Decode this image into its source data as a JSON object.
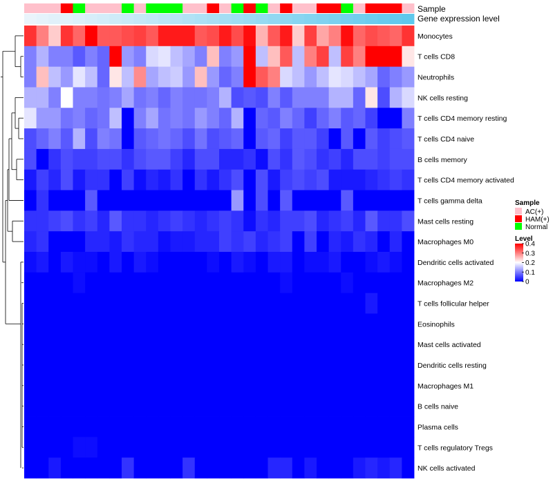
{
  "chart_data": {
    "type": "heatmap",
    "title": "",
    "n_samples": 32,
    "sample_annotation": {
      "label": "Sample",
      "values": [
        "AC(+)",
        "AC(+)",
        "AC(+)",
        "HAM(+)",
        "Normal",
        "AC(+)",
        "AC(+)",
        "AC(+)",
        "Normal",
        "AC(+)",
        "Normal",
        "Normal",
        "Normal",
        "AC(+)",
        "AC(+)",
        "HAM(+)",
        "AC(+)",
        "Normal",
        "HAM(+)",
        "Normal",
        "AC(+)",
        "HAM(+)",
        "AC(+)",
        "AC(+)",
        "HAM(+)",
        "HAM(+)",
        "Normal",
        "AC(+)",
        "HAM(+)",
        "HAM(+)",
        "HAM(+)",
        "AC(+)"
      ]
    },
    "gene_expression_annotation": {
      "label": "Gene expression level",
      "values": [
        0.05,
        0.06,
        0.07,
        0.07,
        0.08,
        0.09,
        0.1,
        0.11,
        0.12,
        0.13,
        0.14,
        0.15,
        0.16,
        0.17,
        0.18,
        0.19,
        0.2,
        0.21,
        0.22,
        0.23,
        0.24,
        0.25,
        0.26,
        0.27,
        0.28,
        0.29,
        0.3,
        0.31,
        0.32,
        0.33,
        0.34,
        0.35
      ],
      "low_color": "#eaf4fb",
      "high_color": "#5ec8ec"
    },
    "rows": [
      {
        "name": "Monocytes",
        "values": [
          0.36,
          0.3,
          0.24,
          0.36,
          0.32,
          0.4,
          0.33,
          0.33,
          0.34,
          0.35,
          0.33,
          0.38,
          0.38,
          0.38,
          0.33,
          0.34,
          0.38,
          0.34,
          0.39,
          0.26,
          0.33,
          0.38,
          0.24,
          0.35,
          0.27,
          0.3,
          0.39,
          0.32,
          0.34,
          0.33,
          0.32,
          0.36
        ]
      },
      {
        "name": "T cells CD8",
        "values": [
          0.1,
          0.14,
          0.1,
          0.1,
          0.07,
          0.1,
          0.08,
          0.4,
          0.12,
          0.1,
          0.17,
          0.18,
          0.15,
          0.13,
          0.1,
          0.25,
          0.1,
          0.12,
          0.4,
          0.15,
          0.25,
          0.33,
          0.15,
          0.3,
          0.35,
          0.15,
          0.35,
          0.3,
          0.4,
          0.4,
          0.4,
          0.22
        ]
      },
      {
        "name": "Neutrophils",
        "values": [
          0.1,
          0.25,
          0.15,
          0.12,
          0.18,
          0.15,
          0.08,
          0.22,
          0.15,
          0.29,
          0.13,
          0.15,
          0.16,
          0.12,
          0.25,
          0.12,
          0.08,
          0.1,
          0.4,
          0.33,
          0.3,
          0.17,
          0.15,
          0.12,
          0.15,
          0.18,
          0.17,
          0.15,
          0.13,
          0.08,
          0.1,
          0.12
        ]
      },
      {
        "name": "NK cells resting",
        "values": [
          0.14,
          0.14,
          0.1,
          0.2,
          0.1,
          0.1,
          0.09,
          0.1,
          0.13,
          0.09,
          0.1,
          0.08,
          0.1,
          0.09,
          0.09,
          0.1,
          0.14,
          0.06,
          0.07,
          0.06,
          0.1,
          0.07,
          0.1,
          0.1,
          0.1,
          0.14,
          0.14,
          0.08,
          0.22,
          0.06,
          0.14,
          0.17
        ]
      },
      {
        "name": "T cells CD4 memory resting",
        "values": [
          0.18,
          0.12,
          0.12,
          0.09,
          0.1,
          0.08,
          0.09,
          0.15,
          0.0,
          0.1,
          0.13,
          0.09,
          0.1,
          0.09,
          0.12,
          0.1,
          0.08,
          0.14,
          0.0,
          0.08,
          0.07,
          0.1,
          0.08,
          0.05,
          0.08,
          0.1,
          0.07,
          0.08,
          0.05,
          0.0,
          0.0,
          0.1
        ]
      },
      {
        "name": "T cells CD4 naive",
        "values": [
          0.06,
          0.08,
          0.1,
          0.07,
          0.14,
          0.06,
          0.1,
          0.09,
          0.0,
          0.07,
          0.08,
          0.09,
          0.08,
          0.06,
          0.09,
          0.06,
          0.07,
          0.08,
          0.0,
          0.07,
          0.08,
          0.05,
          0.07,
          0.07,
          0.05,
          0.0,
          0.07,
          0.0,
          0.07,
          0.05,
          0.06,
          0.07
        ]
      },
      {
        "name": "B cells memory",
        "values": [
          0.06,
          0.0,
          0.04,
          0.06,
          0.05,
          0.05,
          0.06,
          0.06,
          0.04,
          0.06,
          0.07,
          0.07,
          0.05,
          0.03,
          0.06,
          0.06,
          0.03,
          0.03,
          0.04,
          0.01,
          0.06,
          0.04,
          0.07,
          0.06,
          0.04,
          0.05,
          0.03,
          0.06,
          0.06,
          0.05,
          0.06,
          0.06
        ]
      },
      {
        "name": "T cells CD4 memory activated",
        "values": [
          0.02,
          0.05,
          0.03,
          0.06,
          0.02,
          0.04,
          0.04,
          0.0,
          0.05,
          0.01,
          0.03,
          0.02,
          0.04,
          0.0,
          0.04,
          0.02,
          0.04,
          0.06,
          0.0,
          0.06,
          0.02,
          0.05,
          0.06,
          0.05,
          0.06,
          0.02,
          0.02,
          0.02,
          0.03,
          0.04,
          0.05,
          0.04
        ]
      },
      {
        "name": "T cells gamma delta",
        "values": [
          0.0,
          0.04,
          0.0,
          0.0,
          0.0,
          0.07,
          0.0,
          0.0,
          0.0,
          0.0,
          0.0,
          0.0,
          0.0,
          0.0,
          0.0,
          0.0,
          0.0,
          0.12,
          0.0,
          0.06,
          0.0,
          0.07,
          0.0,
          0.0,
          0.0,
          0.0,
          0.07,
          0.0,
          0.0,
          0.0,
          0.0,
          0.0
        ]
      },
      {
        "name": "Mast cells resting",
        "values": [
          0.04,
          0.04,
          0.05,
          0.06,
          0.04,
          0.05,
          0.03,
          0.07,
          0.04,
          0.04,
          0.03,
          0.04,
          0.05,
          0.04,
          0.03,
          0.04,
          0.05,
          0.04,
          0.01,
          0.04,
          0.03,
          0.05,
          0.05,
          0.06,
          0.03,
          0.04,
          0.05,
          0.03,
          0.07,
          0.04,
          0.04,
          0.06
        ]
      },
      {
        "name": "Macrophages M0",
        "values": [
          0.03,
          0.04,
          0.0,
          0.0,
          0.0,
          0.03,
          0.03,
          0.02,
          0.04,
          0.03,
          0.03,
          0.01,
          0.02,
          0.02,
          0.03,
          0.03,
          0.05,
          0.04,
          0.05,
          0.03,
          0.04,
          0.05,
          0.0,
          0.05,
          0.0,
          0.03,
          0.02,
          0.04,
          0.03,
          0.0,
          0.03,
          0.0
        ]
      },
      {
        "name": "Dendritic cells activated",
        "values": [
          0.01,
          0.02,
          0.0,
          0.02,
          0.01,
          0.01,
          0.0,
          0.02,
          0.0,
          0.02,
          0.01,
          0.0,
          0.0,
          0.0,
          0.0,
          0.01,
          0.0,
          0.02,
          0.01,
          0.0,
          0.02,
          0.02,
          0.0,
          0.01,
          0.01,
          0.02,
          0.0,
          0.0,
          0.01,
          0.02,
          0.01,
          0.0
        ]
      },
      {
        "name": "Macrophages M2",
        "values": [
          0.0,
          0.0,
          0.0,
          0.0,
          0.01,
          0.0,
          0.0,
          0.0,
          0.0,
          0.0,
          0.0,
          0.0,
          0.0,
          0.0,
          0.0,
          0.0,
          0.0,
          0.0,
          0.0,
          0.0,
          0.0,
          0.01,
          0.0,
          0.0,
          0.0,
          0.0,
          0.01,
          0.0,
          0.0,
          0.0,
          0.0,
          0.0
        ]
      },
      {
        "name": "T cells follicular helper",
        "values": [
          0.0,
          0.0,
          0.0,
          0.0,
          0.0,
          0.0,
          0.0,
          0.0,
          0.0,
          0.0,
          0.0,
          0.0,
          0.0,
          0.0,
          0.0,
          0.0,
          0.0,
          0.0,
          0.0,
          0.0,
          0.0,
          0.0,
          0.0,
          0.0,
          0.0,
          0.0,
          0.0,
          0.0,
          0.02,
          0.0,
          0.0,
          0.0
        ]
      },
      {
        "name": "Eosinophils",
        "values": [
          0.0,
          0.0,
          0.0,
          0.0,
          0.0,
          0.0,
          0.0,
          0.0,
          0.0,
          0.0,
          0.0,
          0.0,
          0.0,
          0.0,
          0.0,
          0.0,
          0.0,
          0.0,
          0.0,
          0.0,
          0.0,
          0.0,
          0.0,
          0.0,
          0.0,
          0.0,
          0.0,
          0.0,
          0.0,
          0.0,
          0.0,
          0.0
        ]
      },
      {
        "name": "Mast cells activated",
        "values": [
          0.0,
          0.0,
          0.0,
          0.0,
          0.0,
          0.0,
          0.0,
          0.0,
          0.0,
          0.0,
          0.0,
          0.0,
          0.0,
          0.0,
          0.0,
          0.0,
          0.0,
          0.0,
          0.0,
          0.0,
          0.0,
          0.0,
          0.0,
          0.0,
          0.0,
          0.0,
          0.0,
          0.0,
          0.0,
          0.0,
          0.0,
          0.0
        ]
      },
      {
        "name": "Dendritic cells resting",
        "values": [
          0.0,
          0.0,
          0.0,
          0.0,
          0.0,
          0.0,
          0.0,
          0.0,
          0.0,
          0.0,
          0.0,
          0.0,
          0.0,
          0.0,
          0.0,
          0.0,
          0.0,
          0.0,
          0.0,
          0.0,
          0.0,
          0.0,
          0.0,
          0.0,
          0.0,
          0.0,
          0.0,
          0.0,
          0.0,
          0.0,
          0.0,
          0.0
        ]
      },
      {
        "name": "Macrophages M1",
        "values": [
          0.0,
          0.0,
          0.0,
          0.0,
          0.0,
          0.0,
          0.0,
          0.0,
          0.0,
          0.0,
          0.0,
          0.0,
          0.0,
          0.0,
          0.0,
          0.0,
          0.0,
          0.0,
          0.0,
          0.0,
          0.0,
          0.0,
          0.0,
          0.0,
          0.0,
          0.0,
          0.0,
          0.0,
          0.0,
          0.0,
          0.0,
          0.0
        ]
      },
      {
        "name": "B cells naive",
        "values": [
          0.0,
          0.0,
          0.0,
          0.0,
          0.0,
          0.0,
          0.0,
          0.0,
          0.0,
          0.0,
          0.0,
          0.0,
          0.0,
          0.0,
          0.0,
          0.0,
          0.0,
          0.0,
          0.0,
          0.0,
          0.0,
          0.0,
          0.0,
          0.0,
          0.0,
          0.0,
          0.0,
          0.0,
          0.0,
          0.0,
          0.0,
          0.0
        ]
      },
      {
        "name": "Plasma cells",
        "values": [
          0.0,
          0.0,
          0.0,
          0.0,
          0.0,
          0.0,
          0.0,
          0.0,
          0.0,
          0.0,
          0.0,
          0.0,
          0.0,
          0.0,
          0.0,
          0.0,
          0.0,
          0.0,
          0.0,
          0.0,
          0.0,
          0.0,
          0.0,
          0.0,
          0.0,
          0.0,
          0.0,
          0.0,
          0.0,
          0.0,
          0.0,
          0.0
        ]
      },
      {
        "name": "T cells regulatory  Tregs",
        "values": [
          0.0,
          0.0,
          0.0,
          0.0,
          0.01,
          0.01,
          0.0,
          0.0,
          0.0,
          0.0,
          0.0,
          0.0,
          0.0,
          0.0,
          0.0,
          0.0,
          0.0,
          0.0,
          0.0,
          0.0,
          0.0,
          0.0,
          0.0,
          0.0,
          0.0,
          0.0,
          0.0,
          0.0,
          0.0,
          0.0,
          0.0,
          0.0
        ]
      },
      {
        "name": "NK cells activated",
        "values": [
          0.0,
          0.0,
          0.02,
          0.0,
          0.0,
          0.0,
          0.0,
          0.0,
          0.04,
          0.0,
          0.0,
          0.0,
          0.0,
          0.04,
          0.0,
          0.0,
          0.0,
          0.0,
          0.0,
          0.0,
          0.03,
          0.03,
          0.0,
          0.02,
          0.0,
          0.0,
          0.0,
          0.02,
          0.03,
          0.02,
          0.03,
          0.0
        ]
      }
    ],
    "color_scale": {
      "min": 0,
      "mid": 0.2,
      "max": 0.4,
      "low_color": "#0000ff",
      "mid_color": "#ffffff",
      "high_color": "#ff0000"
    },
    "legends": {
      "sample": {
        "title": "Sample",
        "entries": [
          {
            "label": "AC(+)",
            "color": "#ffc0cb"
          },
          {
            "label": "HAM(+)",
            "color": "#ff0000"
          },
          {
            "label": "Normal",
            "color": "#00ff00"
          }
        ]
      },
      "level": {
        "title": "Level",
        "ticks": [
          0.4,
          0.3,
          0.2,
          0.1,
          0
        ]
      }
    }
  }
}
